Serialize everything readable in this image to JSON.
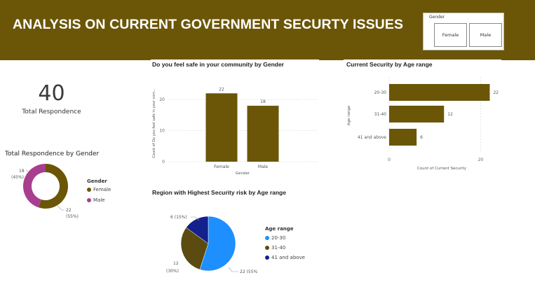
{
  "header": {
    "title": "ANALYSIS ON CURRENT GOVERNMENT SECURTY ISSUES"
  },
  "slicer": {
    "label": "Gender",
    "options": [
      "Female",
      "Male"
    ]
  },
  "kpi": {
    "value": "40",
    "label": "Total Respondence"
  },
  "donut": {
    "title": "Total Respondence by Gender",
    "legend_title": "Gender",
    "legend": [
      "Female",
      "Male"
    ],
    "slices": [
      {
        "label": "22",
        "pct": "(55%)",
        "color": "#6b5608"
      },
      {
        "label": "18",
        "pct": "(45%)",
        "color": "#a83f8e"
      }
    ]
  },
  "colors": {
    "brand": "#6b5608",
    "magenta": "#a83f8e",
    "blue_light": "#1e8fff",
    "navy": "#14208c",
    "olive": "#5b4b10"
  },
  "chart_data": [
    {
      "type": "bar",
      "title": "Do you feel safe in your community by Gender",
      "categories": [
        "Female",
        "Male"
      ],
      "values": [
        22,
        18
      ],
      "xlabel": "Gender",
      "ylabel": "Count of Do you feel safe in your com...",
      "yticks": [
        "0",
        "10",
        "20"
      ],
      "ylim": [
        0,
        25
      ]
    },
    {
      "type": "bar",
      "title": "Current Security by Age range",
      "categories": [
        "20-30",
        "31-40",
        "41 and above"
      ],
      "values": [
        22,
        12,
        6
      ],
      "xlabel": "Count of Current Security",
      "ylabel": "Age range",
      "xticks": [
        "0",
        "20"
      ],
      "xlim": [
        0,
        23
      ]
    },
    {
      "type": "pie",
      "title": "Region with Highest Security risk by Age range",
      "legend_title": "Age range",
      "categories": [
        "20-30",
        "31-40",
        "41 and above"
      ],
      "values": [
        22,
        12,
        6
      ],
      "labels": [
        "22 (55%)",
        "12",
        "(30%)",
        "6 (15%)"
      ]
    },
    {
      "type": "pie",
      "title": "Total Respondence by Gender",
      "categories": [
        "Female",
        "Male"
      ],
      "values": [
        22,
        18
      ]
    }
  ]
}
